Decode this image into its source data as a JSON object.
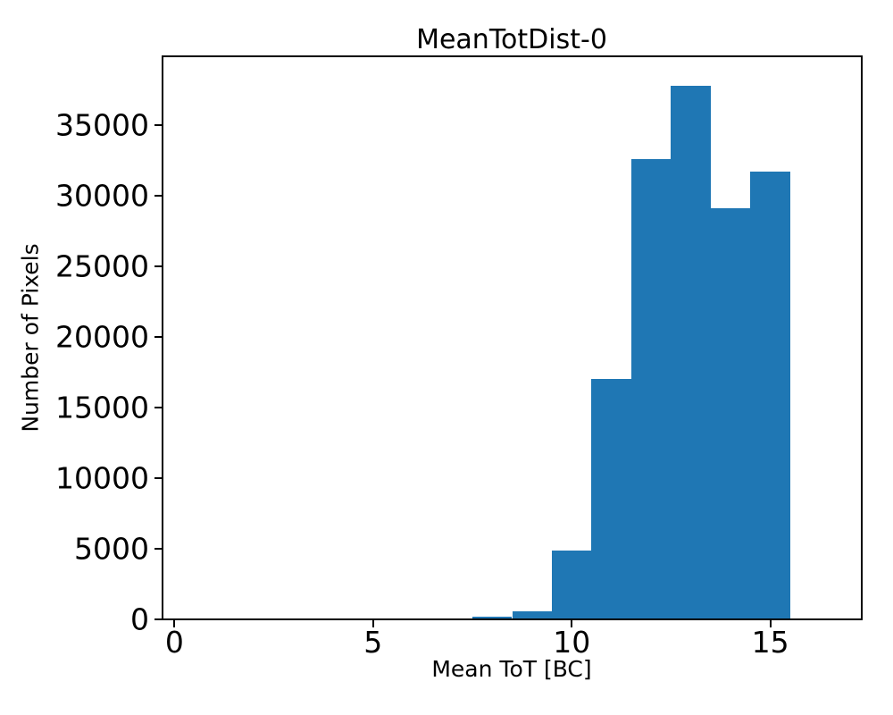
{
  "figure": {
    "title": "MeanTotDist-0",
    "xlabel": "Mean ToT [BC]",
    "ylabel": "Number of Pixels"
  },
  "chart_data": {
    "type": "bar",
    "subtype": "histogram",
    "title": "MeanTotDist-0",
    "xlabel": "Mean ToT [BC]",
    "ylabel": "Number of Pixels",
    "bar_color": "#1f77b4",
    "background_color": "#ffffff",
    "grid": false,
    "legend": "none",
    "xlim": [
      -0.3,
      17.3
    ],
    "ylim": [
      0,
      39900
    ],
    "x_ticks": [
      0,
      5,
      10,
      15
    ],
    "y_ticks": [
      0,
      5000,
      10000,
      15000,
      20000,
      25000,
      30000,
      35000
    ],
    "bin_width": 1,
    "bins": [
      {
        "x0": 7.5,
        "x1": 8.5,
        "count": 200
      },
      {
        "x0": 8.5,
        "x1": 9.5,
        "count": 550
      },
      {
        "x0": 9.5,
        "x1": 10.5,
        "count": 4850
      },
      {
        "x0": 10.5,
        "x1": 11.5,
        "count": 17050
      },
      {
        "x0": 11.5,
        "x1": 12.5,
        "count": 32600
      },
      {
        "x0": 12.5,
        "x1": 13.5,
        "count": 37800
      },
      {
        "x0": 13.5,
        "x1": 14.5,
        "count": 29150
      },
      {
        "x0": 14.5,
        "x1": 15.5,
        "count": 31700
      }
    ]
  }
}
